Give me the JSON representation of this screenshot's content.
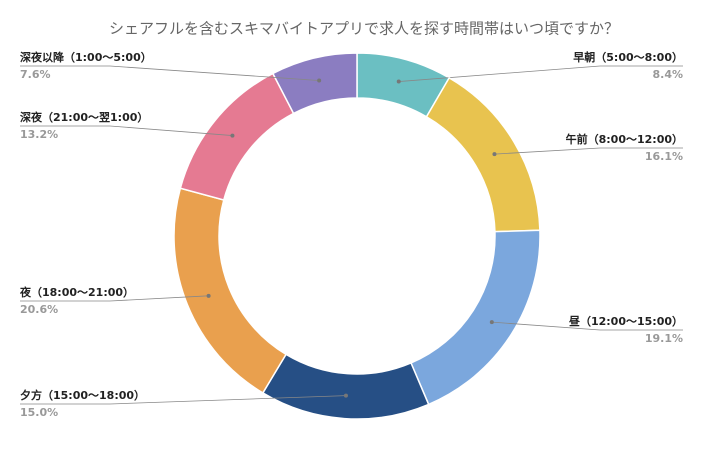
{
  "chart_data": {
    "type": "donut",
    "title": "シェアフルを含むスキマバイトアプリで求人を探す時間帯はいつ頃ですか？",
    "categories": [
      "早朝（5:00〜8:00）",
      "午前（8:00〜12:00）",
      "昼（12:00〜15:00）",
      "夕方（15:00〜18:00）",
      "夜（18:00〜21:00）",
      "深夜（21:00〜翌1:00）",
      "深夜以降（1:00〜5:00）"
    ],
    "values": [
      8.4,
      16.1,
      19.1,
      15.0,
      20.6,
      13.2,
      7.6
    ],
    "value_labels": [
      "8.4%",
      "16.1%",
      "19.1%",
      "15.0%",
      "20.6%",
      "13.2%",
      "7.6%"
    ],
    "colors": [
      "#6bbfc2",
      "#e8c34f",
      "#7ba7dd",
      "#264f85",
      "#e9a04e",
      "#e57a92",
      "#8b7dc1"
    ]
  }
}
